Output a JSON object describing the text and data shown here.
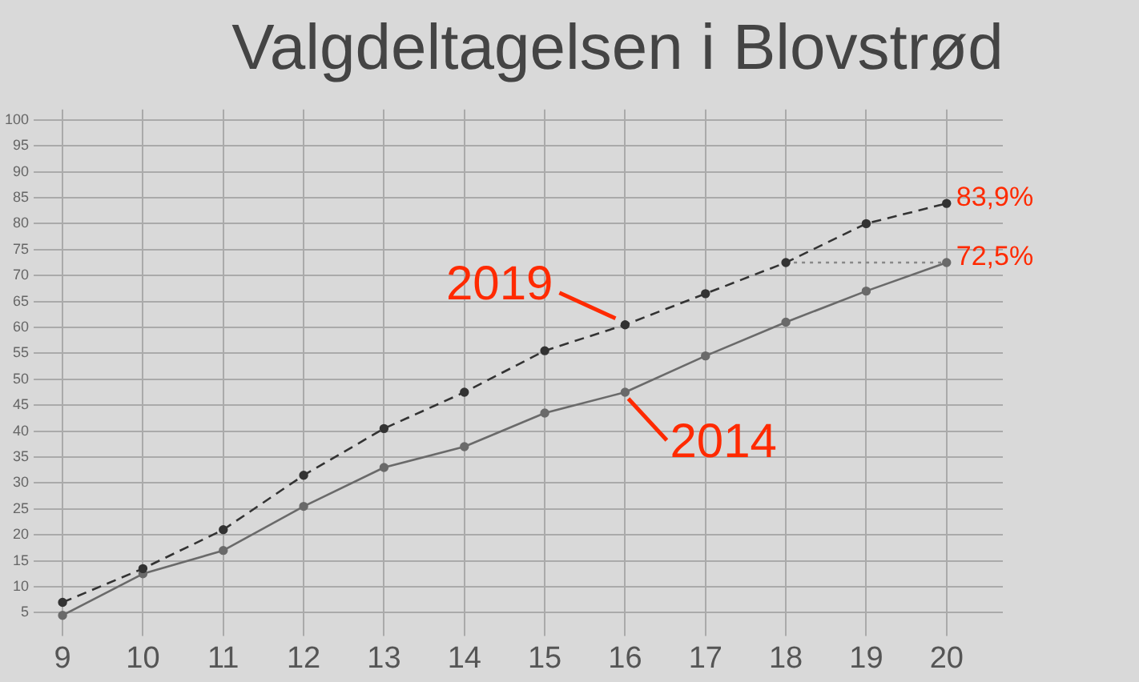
{
  "chart_data": {
    "type": "line",
    "title": "Valgdeltagelsen i Blovstrød",
    "x": [
      9,
      10,
      11,
      12,
      13,
      14,
      15,
      16,
      17,
      18,
      19,
      20
    ],
    "series": [
      {
        "name": "2019",
        "color": "#333333",
        "line_style": "dashed",
        "values": [
          7,
          13.5,
          21,
          31.5,
          40.5,
          47.5,
          55.5,
          60.5,
          66.5,
          72.5,
          80,
          83.9
        ],
        "value_labels": [
          null,
          null,
          null,
          null,
          null,
          null,
          null,
          null,
          null,
          null,
          null,
          "83,9%"
        ]
      },
      {
        "name": "2014",
        "color": "#6a6a6a",
        "line_style": "solid",
        "values": [
          4.5,
          12.5,
          17,
          25.5,
          33,
          37,
          43.5,
          47.5,
          54.5,
          61,
          67,
          72.5
        ],
        "value_labels": [
          null,
          null,
          null,
          null,
          null,
          null,
          null,
          null,
          null,
          null,
          null,
          "72,5%"
        ]
      },
      {
        "x": [
          18,
          20
        ],
        "color": "#888888",
        "line_style": "dotted",
        "marker": "none",
        "values": [
          72.5,
          72.5
        ]
      }
    ],
    "xlim": [
      8.8,
      20.7
    ],
    "xticks": [
      9,
      10,
      11,
      12,
      13,
      14,
      15,
      16,
      17,
      18,
      19,
      20
    ],
    "ylim": [
      3,
      102
    ],
    "yticks": [
      5,
      10,
      15,
      20,
      25,
      30,
      35,
      40,
      45,
      50,
      55,
      60,
      65,
      70,
      75,
      80,
      85,
      90,
      95,
      100
    ],
    "grid": true,
    "legend": false,
    "marker": "circle"
  }
}
